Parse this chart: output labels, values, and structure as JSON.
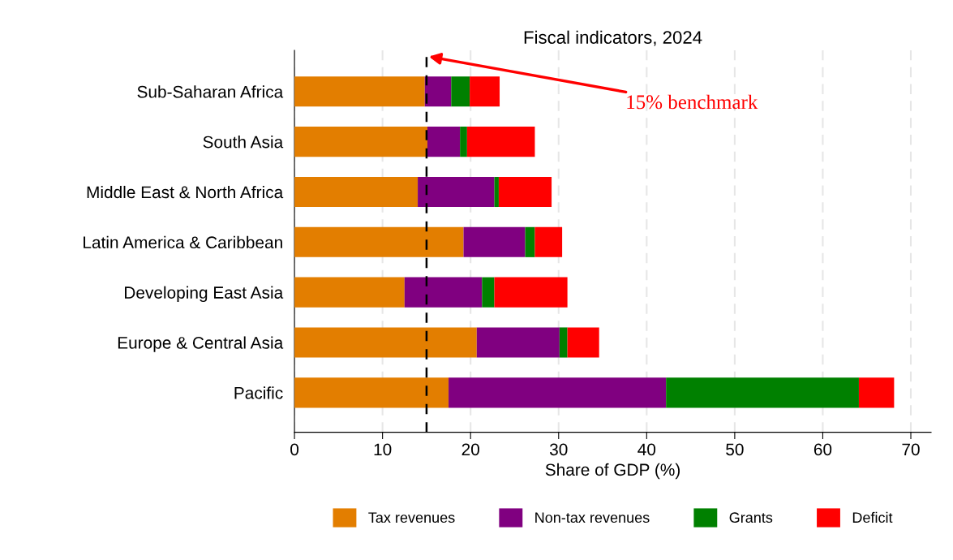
{
  "chart_data": {
    "type": "bar",
    "orientation": "horizontal",
    "stacked": true,
    "title": "Fiscal indicators, 2024",
    "xlabel": "Share of GDP (%)",
    "categories": [
      "Sub-Saharan Africa",
      "South Asia",
      "Middle East & North Africa",
      "Latin America & Caribbean",
      "Developing East Asia",
      "Europe & Central Asia",
      "Pacific"
    ],
    "series": [
      {
        "name": "Tax revenues",
        "color": "#e37e00",
        "values": [
          14.8,
          15.1,
          14.0,
          19.2,
          12.5,
          20.7,
          17.5
        ]
      },
      {
        "name": "Non-tax revenues",
        "color": "#800080",
        "values": [
          3.0,
          3.7,
          8.7,
          7.0,
          8.8,
          9.4,
          24.7
        ]
      },
      {
        "name": "Grants",
        "color": "#008000",
        "values": [
          2.1,
          0.8,
          0.5,
          1.1,
          1.4,
          0.9,
          21.9
        ]
      },
      {
        "name": "Deficit",
        "color": "#ff0000",
        "values": [
          3.4,
          7.7,
          6.0,
          3.1,
          8.3,
          3.6,
          4.0
        ]
      }
    ],
    "xlim": [
      0,
      72.3
    ],
    "xticks": [
      0,
      10,
      20,
      30,
      40,
      50,
      60,
      70
    ],
    "grid": "x",
    "legend": "bottom",
    "ref_lines": [
      {
        "axis": "x",
        "value": 15,
        "label": "15% benchmark",
        "color": "#000000",
        "line_style": "dashed"
      }
    ]
  }
}
